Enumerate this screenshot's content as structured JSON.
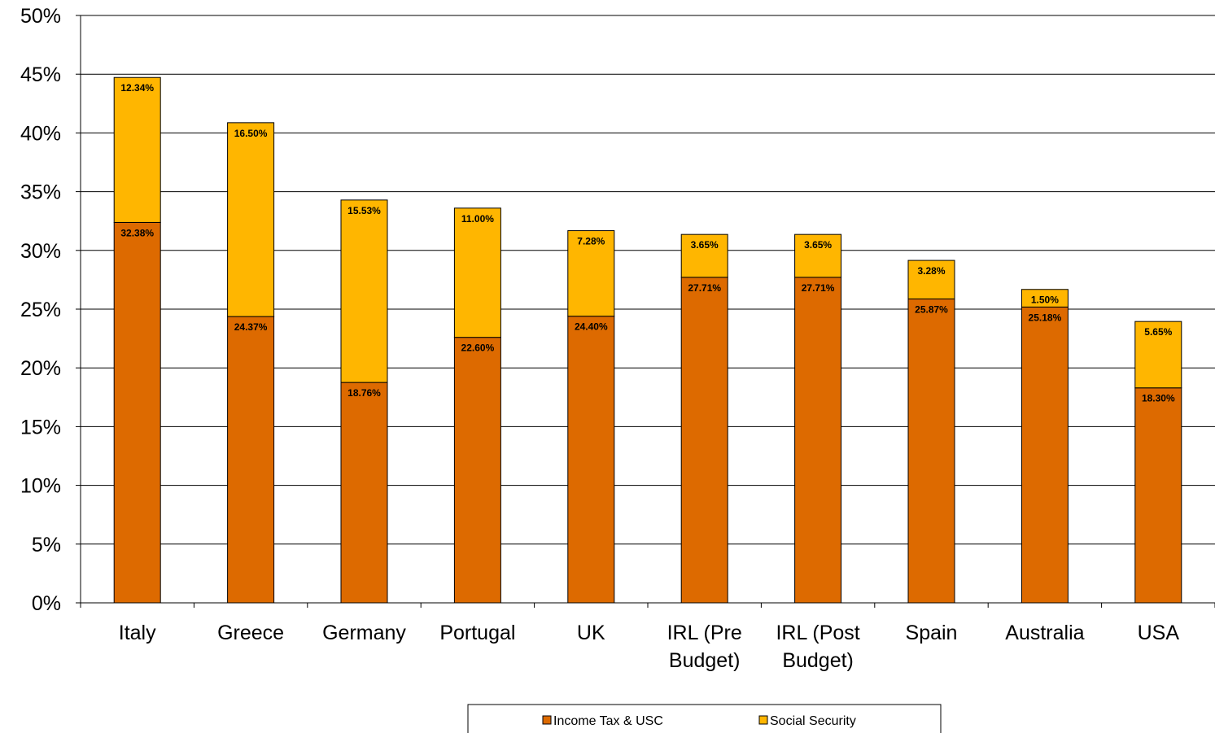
{
  "chart_data": {
    "type": "bar",
    "stacked": true,
    "categories": [
      [
        "Italy"
      ],
      [
        "Greece"
      ],
      [
        "Germany"
      ],
      [
        "Portugal"
      ],
      [
        "UK"
      ],
      [
        "IRL (Pre",
        "Budget)"
      ],
      [
        "IRL (Post",
        "Budget)"
      ],
      [
        "Spain"
      ],
      [
        "Australia"
      ],
      [
        "USA"
      ]
    ],
    "series": [
      {
        "name": "Income Tax & USC",
        "color": "#DD6A00",
        "values": [
          32.38,
          24.37,
          18.76,
          22.6,
          24.4,
          27.71,
          27.71,
          25.87,
          25.18,
          18.3
        ],
        "labels": [
          "32.38%",
          "24.37%",
          "18.76%",
          "22.60%",
          "24.40%",
          "27.71%",
          "27.71%",
          "25.87%",
          "25.18%",
          "18.30%"
        ]
      },
      {
        "name": "Social Security",
        "color": "#FFB600",
        "values": [
          12.34,
          16.5,
          15.53,
          11.0,
          7.28,
          3.65,
          3.65,
          3.28,
          1.5,
          5.65
        ],
        "labels": [
          "12.34%",
          "16.50%",
          "15.53%",
          "11.00%",
          "7.28%",
          "3.65%",
          "3.65%",
          "3.28%",
          "1.50%",
          "5.65%"
        ]
      }
    ],
    "ylim": [
      0,
      50
    ],
    "yticks": [
      0,
      5,
      10,
      15,
      20,
      25,
      30,
      35,
      40,
      45,
      50
    ],
    "ytick_labels": [
      "0%",
      "5%",
      "10%",
      "15%",
      "20%",
      "25%",
      "30%",
      "35%",
      "40%",
      "45%",
      "50%"
    ],
    "grid": true,
    "legend_position": "bottom",
    "title": "",
    "xlabel": "",
    "ylabel": ""
  }
}
